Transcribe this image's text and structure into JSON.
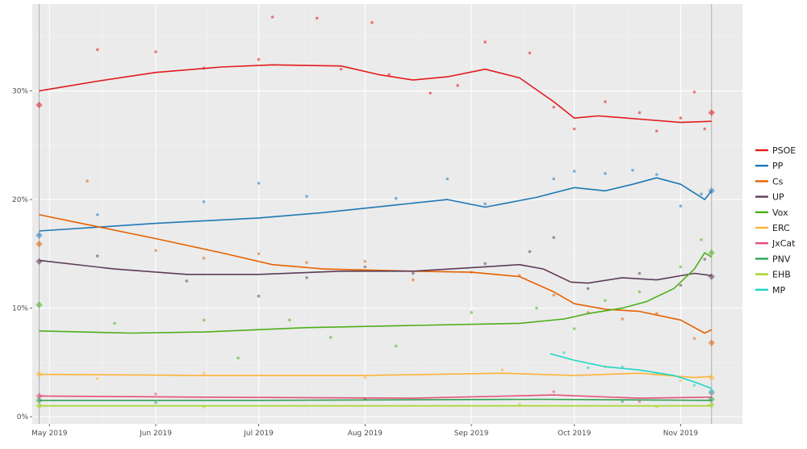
{
  "chart_data": {
    "type": "line",
    "title": "",
    "xlabel": "",
    "ylabel": "",
    "x_ticks": [
      "May 2019",
      "Jun 2019",
      "Jul 2019",
      "Aug 2019",
      "Sep 2019",
      "Oct 2019",
      "Nov 2019"
    ],
    "x_tick_dates": [
      "2019-05-01",
      "2019-06-01",
      "2019-07-01",
      "2019-08-01",
      "2019-09-01",
      "2019-10-01",
      "2019-11-01"
    ],
    "xlim": [
      "2019-04-26",
      "2019-11-19"
    ],
    "y_ticks": [
      "0%",
      "10%",
      "20%",
      "30%"
    ],
    "ylim": [
      0,
      38
    ],
    "grid": true,
    "legend_position": "right",
    "reference_dates": [
      "2019-04-28",
      "2019-11-10"
    ],
    "series": [
      {
        "name": "PSOE",
        "color": "#e31a1c",
        "election_start": 28.7,
        "election_end": 28.0,
        "trend": [
          [
            "2019-04-28",
            30.0
          ],
          [
            "2019-05-15",
            30.9
          ],
          [
            "2019-06-01",
            31.7
          ],
          [
            "2019-06-20",
            32.2
          ],
          [
            "2019-07-05",
            32.4
          ],
          [
            "2019-07-25",
            32.3
          ],
          [
            "2019-08-05",
            31.5
          ],
          [
            "2019-08-15",
            31.0
          ],
          [
            "2019-08-25",
            31.3
          ],
          [
            "2019-09-05",
            32.0
          ],
          [
            "2019-09-15",
            31.2
          ],
          [
            "2019-09-25",
            29.0
          ],
          [
            "2019-10-01",
            27.5
          ],
          [
            "2019-10-08",
            27.7
          ],
          [
            "2019-10-20",
            27.4
          ],
          [
            "2019-11-01",
            27.1
          ],
          [
            "2019-11-10",
            27.2
          ]
        ],
        "polls": [
          [
            "2019-05-15",
            33.8
          ],
          [
            "2019-06-01",
            33.6
          ],
          [
            "2019-06-15",
            32.1
          ],
          [
            "2019-07-01",
            32.9
          ],
          [
            "2019-07-05",
            36.8
          ],
          [
            "2019-07-18",
            36.7
          ],
          [
            "2019-07-25",
            32.0
          ],
          [
            "2019-08-03",
            36.3
          ],
          [
            "2019-08-08",
            31.5
          ],
          [
            "2019-08-20",
            29.8
          ],
          [
            "2019-08-28",
            30.5
          ],
          [
            "2019-09-05",
            34.5
          ],
          [
            "2019-09-18",
            33.5
          ],
          [
            "2019-09-25",
            28.5
          ],
          [
            "2019-10-01",
            26.5
          ],
          [
            "2019-10-10",
            29.0
          ],
          [
            "2019-10-20",
            28.0
          ],
          [
            "2019-10-25",
            26.3
          ],
          [
            "2019-11-01",
            27.5
          ],
          [
            "2019-11-05",
            29.9
          ],
          [
            "2019-11-08",
            26.5
          ]
        ]
      },
      {
        "name": "PP",
        "color": "#1f78b4",
        "election_start": 16.7,
        "election_end": 20.8,
        "trend": [
          [
            "2019-04-28",
            17.1
          ],
          [
            "2019-06-01",
            17.8
          ],
          [
            "2019-07-01",
            18.3
          ],
          [
            "2019-07-20",
            18.8
          ],
          [
            "2019-08-10",
            19.5
          ],
          [
            "2019-08-25",
            20.0
          ],
          [
            "2019-09-05",
            19.3
          ],
          [
            "2019-09-20",
            20.2
          ],
          [
            "2019-10-01",
            21.1
          ],
          [
            "2019-10-10",
            20.8
          ],
          [
            "2019-10-18",
            21.4
          ],
          [
            "2019-10-25",
            22.0
          ],
          [
            "2019-11-01",
            21.4
          ],
          [
            "2019-11-08",
            20.0
          ],
          [
            "2019-11-10",
            20.8
          ]
        ],
        "polls": [
          [
            "2019-05-15",
            18.6
          ],
          [
            "2019-06-15",
            19.8
          ],
          [
            "2019-07-01",
            21.5
          ],
          [
            "2019-07-15",
            20.3
          ],
          [
            "2019-08-10",
            20.1
          ],
          [
            "2019-08-25",
            21.9
          ],
          [
            "2019-09-05",
            19.6
          ],
          [
            "2019-09-25",
            21.9
          ],
          [
            "2019-10-01",
            22.6
          ],
          [
            "2019-10-10",
            22.4
          ],
          [
            "2019-10-18",
            22.7
          ],
          [
            "2019-10-25",
            22.3
          ],
          [
            "2019-11-01",
            19.4
          ],
          [
            "2019-11-07",
            20.5
          ]
        ]
      },
      {
        "name": "Cs",
        "color": "#e66101",
        "election_start": 15.9,
        "election_end": 6.8,
        "trend": [
          [
            "2019-04-28",
            18.6
          ],
          [
            "2019-05-15",
            17.5
          ],
          [
            "2019-06-01",
            16.4
          ],
          [
            "2019-06-20",
            15.1
          ],
          [
            "2019-07-05",
            14.0
          ],
          [
            "2019-07-20",
            13.6
          ],
          [
            "2019-08-15",
            13.4
          ],
          [
            "2019-09-01",
            13.3
          ],
          [
            "2019-09-15",
            12.9
          ],
          [
            "2019-09-25",
            11.5
          ],
          [
            "2019-10-01",
            10.4
          ],
          [
            "2019-10-10",
            9.9
          ],
          [
            "2019-10-20",
            9.7
          ],
          [
            "2019-11-01",
            8.9
          ],
          [
            "2019-11-08",
            7.7
          ],
          [
            "2019-11-10",
            8.0
          ]
        ],
        "polls": [
          [
            "2019-05-12",
            21.7
          ],
          [
            "2019-06-01",
            15.3
          ],
          [
            "2019-06-15",
            14.6
          ],
          [
            "2019-07-01",
            15.0
          ],
          [
            "2019-07-15",
            14.2
          ],
          [
            "2019-08-01",
            14.3
          ],
          [
            "2019-08-15",
            12.6
          ],
          [
            "2019-09-01",
            13.3
          ],
          [
            "2019-09-15",
            13.0
          ],
          [
            "2019-09-25",
            11.2
          ],
          [
            "2019-10-05",
            9.6
          ],
          [
            "2019-10-15",
            9.0
          ],
          [
            "2019-10-25",
            9.5
          ],
          [
            "2019-11-05",
            7.2
          ]
        ]
      },
      {
        "name": "UP",
        "color": "#5e3c58",
        "election_start": 14.3,
        "election_end": 12.9,
        "trend": [
          [
            "2019-04-28",
            14.4
          ],
          [
            "2019-05-20",
            13.6
          ],
          [
            "2019-06-10",
            13.1
          ],
          [
            "2019-07-01",
            13.1
          ],
          [
            "2019-07-25",
            13.4
          ],
          [
            "2019-08-15",
            13.4
          ],
          [
            "2019-09-05",
            13.8
          ],
          [
            "2019-09-15",
            14.0
          ],
          [
            "2019-09-22",
            13.6
          ],
          [
            "2019-09-30",
            12.4
          ],
          [
            "2019-10-05",
            12.3
          ],
          [
            "2019-10-15",
            12.8
          ],
          [
            "2019-10-25",
            12.6
          ],
          [
            "2019-11-05",
            13.2
          ],
          [
            "2019-11-10",
            13.0
          ]
        ],
        "polls": [
          [
            "2019-05-15",
            14.8
          ],
          [
            "2019-06-10",
            12.5
          ],
          [
            "2019-07-01",
            11.1
          ],
          [
            "2019-07-15",
            12.8
          ],
          [
            "2019-08-01",
            13.8
          ],
          [
            "2019-08-15",
            13.2
          ],
          [
            "2019-09-05",
            14.1
          ],
          [
            "2019-09-18",
            15.2
          ],
          [
            "2019-09-25",
            16.5
          ],
          [
            "2019-10-05",
            11.8
          ],
          [
            "2019-10-20",
            13.2
          ],
          [
            "2019-11-01",
            12.1
          ],
          [
            "2019-11-08",
            14.5
          ]
        ]
      },
      {
        "name": "Vox",
        "color": "#4daf1a",
        "election_start": 10.3,
        "election_end": 15.1,
        "trend": [
          [
            "2019-04-28",
            7.9
          ],
          [
            "2019-05-25",
            7.7
          ],
          [
            "2019-06-15",
            7.8
          ],
          [
            "2019-07-15",
            8.2
          ],
          [
            "2019-08-15",
            8.4
          ],
          [
            "2019-09-15",
            8.6
          ],
          [
            "2019-09-28",
            9.0
          ],
          [
            "2019-10-05",
            9.5
          ],
          [
            "2019-10-15",
            10.0
          ],
          [
            "2019-10-22",
            10.6
          ],
          [
            "2019-10-30",
            11.8
          ],
          [
            "2019-11-05",
            13.6
          ],
          [
            "2019-11-08",
            15.1
          ],
          [
            "2019-11-10",
            14.7
          ]
        ],
        "polls": [
          [
            "2019-05-20",
            8.6
          ],
          [
            "2019-06-15",
            8.9
          ],
          [
            "2019-06-25",
            5.4
          ],
          [
            "2019-07-10",
            8.9
          ],
          [
            "2019-07-22",
            7.3
          ],
          [
            "2019-08-10",
            6.5
          ],
          [
            "2019-09-01",
            9.6
          ],
          [
            "2019-09-20",
            10.0
          ],
          [
            "2019-10-01",
            8.1
          ],
          [
            "2019-10-10",
            10.7
          ],
          [
            "2019-10-20",
            11.5
          ],
          [
            "2019-11-01",
            13.8
          ],
          [
            "2019-11-07",
            16.3
          ]
        ]
      },
      {
        "name": "ERC",
        "color": "#fdb338",
        "election_start": 3.9,
        "election_end": 3.6,
        "trend": [
          [
            "2019-04-28",
            3.9
          ],
          [
            "2019-06-15",
            3.8
          ],
          [
            "2019-08-01",
            3.8
          ],
          [
            "2019-09-10",
            4.0
          ],
          [
            "2019-10-01",
            3.8
          ],
          [
            "2019-10-20",
            4.0
          ],
          [
            "2019-11-05",
            3.6
          ],
          [
            "2019-11-10",
            3.7
          ]
        ],
        "polls": [
          [
            "2019-05-15",
            3.5
          ],
          [
            "2019-06-15",
            4.0
          ],
          [
            "2019-08-01",
            3.6
          ],
          [
            "2019-09-10",
            4.3
          ],
          [
            "2019-10-10",
            4.6
          ],
          [
            "2019-11-01",
            3.3
          ]
        ]
      },
      {
        "name": "JxCat",
        "color": "#e3507a",
        "election_start": 1.9,
        "election_end": 2.2,
        "trend": [
          [
            "2019-04-28",
            1.9
          ],
          [
            "2019-06-15",
            1.8
          ],
          [
            "2019-08-15",
            1.7
          ],
          [
            "2019-09-25",
            2.0
          ],
          [
            "2019-10-20",
            1.7
          ],
          [
            "2019-11-10",
            1.8
          ]
        ],
        "polls": [
          [
            "2019-06-01",
            2.1
          ],
          [
            "2019-08-01",
            1.6
          ],
          [
            "2019-09-25",
            2.3
          ],
          [
            "2019-10-20",
            1.4
          ]
        ]
      },
      {
        "name": "PNV",
        "color": "#31a354",
        "election_start": 1.5,
        "election_end": 1.6,
        "trend": [
          [
            "2019-04-28",
            1.5
          ],
          [
            "2019-07-01",
            1.5
          ],
          [
            "2019-09-20",
            1.6
          ],
          [
            "2019-11-10",
            1.5
          ]
        ],
        "polls": [
          [
            "2019-06-01",
            1.3
          ],
          [
            "2019-08-01",
            1.6
          ],
          [
            "2019-10-15",
            1.4
          ]
        ]
      },
      {
        "name": "EHB",
        "color": "#a6d323",
        "election_start": 1.0,
        "election_end": 1.1,
        "trend": [
          [
            "2019-04-28",
            1.0
          ],
          [
            "2019-08-01",
            1.0
          ],
          [
            "2019-11-10",
            1.0
          ]
        ],
        "polls": [
          [
            "2019-06-15",
            0.9
          ],
          [
            "2019-09-15",
            1.1
          ],
          [
            "2019-10-25",
            0.9
          ]
        ]
      },
      {
        "name": "MP",
        "color": "#1cd6c6",
        "election_start": null,
        "election_end": 2.3,
        "trend": [
          [
            "2019-09-24",
            5.8
          ],
          [
            "2019-10-01",
            5.2
          ],
          [
            "2019-10-10",
            4.6
          ],
          [
            "2019-10-20",
            4.3
          ],
          [
            "2019-10-30",
            3.8
          ],
          [
            "2019-11-05",
            3.2
          ],
          [
            "2019-11-10",
            2.6
          ]
        ],
        "polls": [
          [
            "2019-09-28",
            5.9
          ],
          [
            "2019-10-05",
            4.5
          ],
          [
            "2019-10-15",
            4.6
          ],
          [
            "2019-10-25",
            4.0
          ],
          [
            "2019-11-05",
            2.9
          ]
        ]
      }
    ]
  }
}
